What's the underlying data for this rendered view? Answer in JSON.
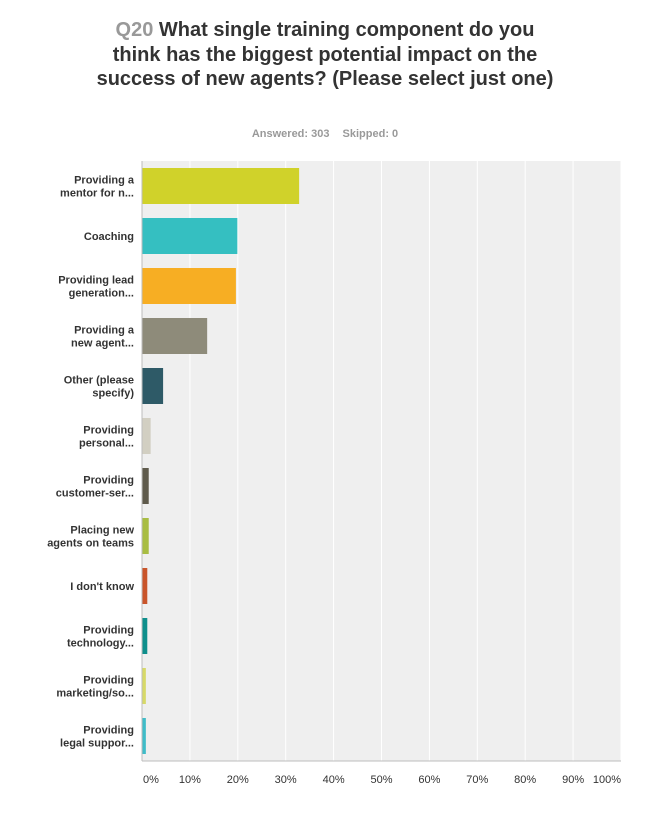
{
  "title": {
    "qnum": "Q20",
    "text": "What single training component do you think has the biggest potential impact on the success of new agents? (Please select just one)"
  },
  "stats": {
    "answered": "Answered: 303",
    "skipped": "Skipped: 0"
  },
  "chart_data": {
    "type": "bar",
    "orientation": "horizontal",
    "categories": [
      [
        "Providing a",
        "mentor for n..."
      ],
      [
        "Coaching"
      ],
      [
        "Providing lead",
        "generation..."
      ],
      [
        "Providing a",
        "new agent..."
      ],
      [
        "Other (please",
        "specify)"
      ],
      [
        "Providing",
        "personal..."
      ],
      [
        "Providing",
        "customer-ser..."
      ],
      [
        "Placing new",
        "agents on teams"
      ],
      [
        "I don't know"
      ],
      [
        "Providing",
        "technology..."
      ],
      [
        "Providing",
        "marketing/so..."
      ],
      [
        "Providing",
        "legal suppor..."
      ]
    ],
    "values": [
      32.7,
      19.8,
      19.5,
      13.5,
      4.3,
      1.7,
      1.3,
      1.3,
      1.0,
      1.0,
      0.7,
      0.7
    ],
    "colors": [
      "#d0d22a",
      "#35bfc1",
      "#f7ae23",
      "#8e8b7a",
      "#2e5a67",
      "#d2cfc2",
      "#5f5b4c",
      "#a8bd43",
      "#c9552b",
      "#0e8f8c",
      "#d7d968",
      "#3fbcc8"
    ],
    "xlim": [
      0,
      100
    ],
    "xticks": [
      "0%",
      "10%",
      "20%",
      "30%",
      "40%",
      "50%",
      "60%",
      "70%",
      "80%",
      "90%",
      "100%"
    ],
    "grid": true
  }
}
